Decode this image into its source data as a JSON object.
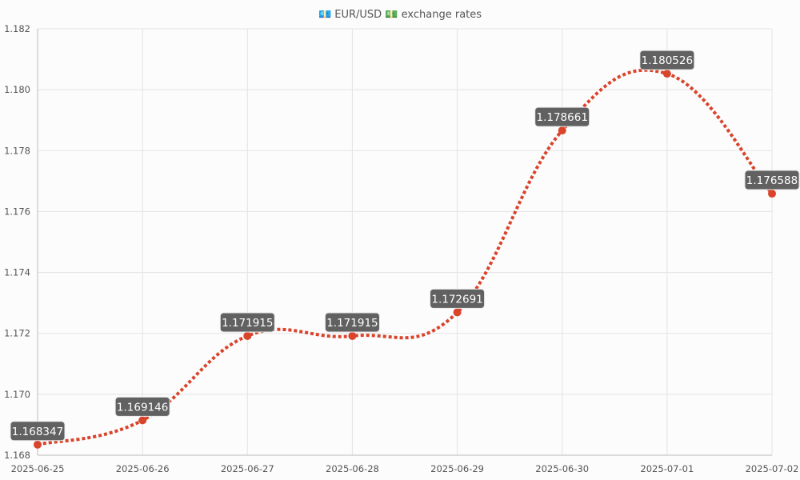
{
  "chart_data": {
    "type": "line",
    "title": "💶 EUR/USD 💵 exchange rates",
    "x": [
      "2025-06-25",
      "2025-06-26",
      "2025-06-27",
      "2025-06-28",
      "2025-06-29",
      "2025-06-30",
      "2025-07-01",
      "2025-07-02"
    ],
    "series": [
      {
        "values": [
          1.168347,
          1.169146,
          1.171915,
          1.171915,
          1.172691,
          1.178661,
          1.180526,
          1.176588
        ],
        "labels": [
          "1.168347",
          "1.169146",
          "1.171915",
          "1.171915",
          "1.172691",
          "1.178661",
          "1.180526",
          "1.176588"
        ],
        "color": "#d9442b"
      }
    ],
    "ylim": [
      1.168,
      1.182
    ],
    "yticks": [
      "1.168",
      "1.170",
      "1.172",
      "1.174",
      "1.176",
      "1.178",
      "1.180",
      "1.182"
    ],
    "grid": true,
    "legend": "none"
  }
}
